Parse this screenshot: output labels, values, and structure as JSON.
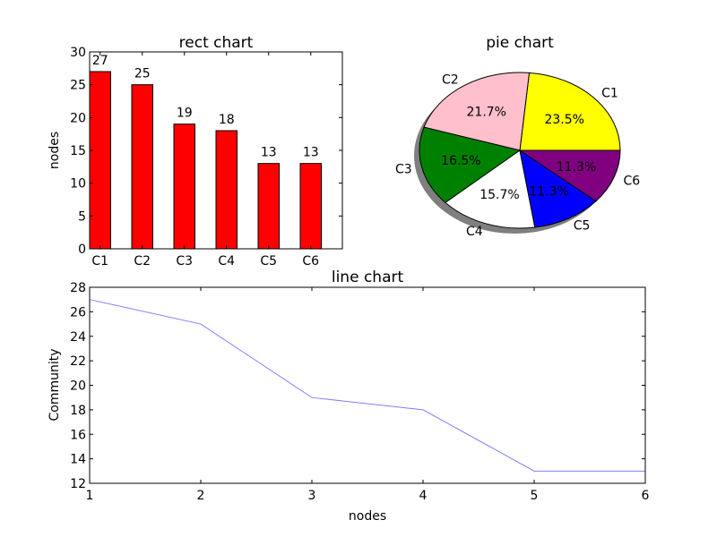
{
  "chart_data": [
    {
      "type": "bar",
      "title": "rect chart",
      "xlabel": "",
      "ylabel": "nodes",
      "categories": [
        "C1",
        "C2",
        "C3",
        "C4",
        "C5",
        "C6"
      ],
      "values": [
        27,
        25,
        19,
        18,
        13,
        13
      ],
      "ylim": [
        0,
        30
      ],
      "yticks": [
        0,
        5,
        10,
        15,
        20,
        25,
        30
      ],
      "bar_color": "#ff0000",
      "edge_color": "#000000",
      "data_labels": [
        "27",
        "25",
        "19",
        "18",
        "13",
        "13"
      ],
      "grid": false
    },
    {
      "type": "pie",
      "title": "pie chart",
      "labels": [
        "C1",
        "C2",
        "C3",
        "C4",
        "C5",
        "C6"
      ],
      "values": [
        23.5,
        21.7,
        16.5,
        15.7,
        11.3,
        11.3
      ],
      "percent_labels": [
        "23.5%",
        "21.7%",
        "16.5%",
        "15.7%",
        "11.3%",
        "11.3%"
      ],
      "colors": [
        "#ffff00",
        "#ffc0cb",
        "#008000",
        "#ffffff",
        "#0000ff",
        "#800080"
      ],
      "shadow": true,
      "start_angle_deg": 0
    },
    {
      "type": "line",
      "title": "line chart",
      "xlabel": "nodes",
      "ylabel": "Community",
      "x": [
        1,
        2,
        3,
        4,
        5,
        6
      ],
      "y": [
        27,
        25,
        19,
        18,
        13,
        13
      ],
      "xlim": [
        1,
        6
      ],
      "ylim": [
        12,
        28
      ],
      "xticks": [
        1,
        2,
        3,
        4,
        5,
        6
      ],
      "yticks": [
        12,
        14,
        16,
        18,
        20,
        22,
        24,
        26,
        28
      ],
      "line_color": "#7f7fff",
      "grid": false
    }
  ]
}
